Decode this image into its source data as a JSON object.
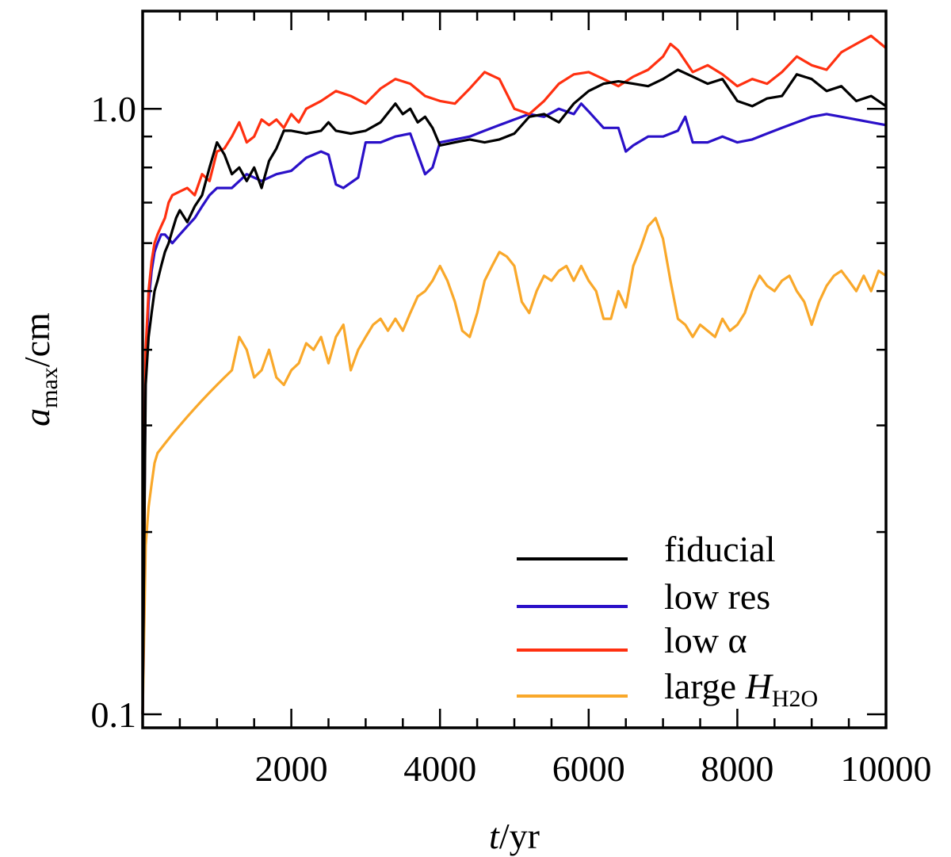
{
  "chart_data": {
    "type": "line",
    "title": "",
    "xlabel": {
      "italic": "t",
      "rest": "/yr"
    },
    "ylabel": {
      "italic": "a",
      "sub": "max",
      "rest": "/cm"
    },
    "xlim": [
      0,
      10000
    ],
    "ylim": [
      0.095,
      1.45
    ],
    "yscale": "log",
    "x_ticks": [
      2000,
      4000,
      6000,
      8000,
      10000
    ],
    "x_tick_labels": [
      "2000",
      "4000",
      "6000",
      "8000",
      "10000"
    ],
    "y_ticks": [
      0.1,
      1.0
    ],
    "y_tick_labels": [
      "0.1",
      "1.0"
    ],
    "legend_position": "bottom-right",
    "series": [
      {
        "name": "fiducial",
        "label_main": "fiducial",
        "label_italic": "",
        "label_sub": "",
        "color": "#000000",
        "x": [
          0,
          40,
          80,
          120,
          160,
          200,
          250,
          300,
          350,
          400,
          450,
          500,
          600,
          700,
          800,
          900,
          1000,
          1100,
          1200,
          1300,
          1400,
          1500,
          1600,
          1700,
          1800,
          1900,
          2000,
          2200,
          2400,
          2500,
          2600,
          2800,
          3000,
          3200,
          3400,
          3500,
          3600,
          3700,
          3800,
          3900,
          4000,
          4200,
          4400,
          4600,
          4800,
          5000,
          5200,
          5400,
          5600,
          5800,
          6000,
          6200,
          6400,
          6600,
          6800,
          7000,
          7200,
          7400,
          7600,
          7800,
          8000,
          8200,
          8400,
          8600,
          8800,
          9000,
          9200,
          9400,
          9600,
          9800,
          10000
        ],
        "y": [
          0.1,
          0.35,
          0.42,
          0.46,
          0.5,
          0.52,
          0.55,
          0.58,
          0.6,
          0.63,
          0.66,
          0.68,
          0.65,
          0.69,
          0.72,
          0.8,
          0.88,
          0.84,
          0.78,
          0.8,
          0.76,
          0.8,
          0.74,
          0.82,
          0.86,
          0.92,
          0.92,
          0.91,
          0.92,
          0.95,
          0.92,
          0.91,
          0.92,
          0.95,
          1.02,
          0.98,
          1.0,
          0.95,
          0.97,
          0.93,
          0.87,
          0.88,
          0.89,
          0.88,
          0.89,
          0.91,
          0.97,
          0.98,
          0.95,
          1.02,
          1.07,
          1.1,
          1.11,
          1.1,
          1.09,
          1.12,
          1.16,
          1.13,
          1.1,
          1.12,
          1.03,
          1.01,
          1.04,
          1.05,
          1.14,
          1.12,
          1.07,
          1.09,
          1.03,
          1.05,
          1.01
        ]
      },
      {
        "name": "low res",
        "label_main": "low res",
        "label_italic": "",
        "label_sub": "",
        "color": "#2a10c8",
        "x": [
          0,
          40,
          80,
          120,
          160,
          200,
          250,
          300,
          350,
          400,
          500,
          600,
          700,
          800,
          900,
          1000,
          1200,
          1400,
          1600,
          1800,
          2000,
          2200,
          2400,
          2500,
          2600,
          2700,
          2900,
          3000,
          3200,
          3400,
          3600,
          3800,
          3900,
          4000,
          4200,
          4400,
          4600,
          4800,
          5000,
          5200,
          5400,
          5600,
          5800,
          5900,
          6000,
          6200,
          6400,
          6500,
          6600,
          6800,
          7000,
          7200,
          7300,
          7400,
          7600,
          7800,
          8000,
          8200,
          8400,
          8600,
          8800,
          9000,
          9200,
          9400,
          9600,
          9800,
          10000
        ],
        "y": [
          0.1,
          0.38,
          0.48,
          0.54,
          0.58,
          0.6,
          0.62,
          0.62,
          0.61,
          0.6,
          0.62,
          0.64,
          0.66,
          0.69,
          0.72,
          0.74,
          0.74,
          0.78,
          0.76,
          0.78,
          0.79,
          0.83,
          0.85,
          0.84,
          0.75,
          0.74,
          0.77,
          0.88,
          0.88,
          0.9,
          0.91,
          0.78,
          0.8,
          0.88,
          0.89,
          0.9,
          0.92,
          0.94,
          0.96,
          0.98,
          0.97,
          1.0,
          0.98,
          1.02,
          0.99,
          0.93,
          0.93,
          0.85,
          0.87,
          0.9,
          0.9,
          0.92,
          0.97,
          0.88,
          0.88,
          0.9,
          0.88,
          0.89,
          0.91,
          0.93,
          0.95,
          0.97,
          0.98,
          0.97,
          0.96,
          0.95,
          0.94
        ]
      },
      {
        "name": "low α",
        "label_main": "low α",
        "label_italic": "",
        "label_sub": "",
        "color": "#ff3010",
        "x": [
          0,
          40,
          80,
          120,
          160,
          200,
          250,
          300,
          350,
          400,
          500,
          600,
          700,
          800,
          900,
          1000,
          1100,
          1200,
          1300,
          1400,
          1500,
          1600,
          1700,
          1800,
          1900,
          2000,
          2100,
          2200,
          2400,
          2600,
          2800,
          3000,
          3200,
          3400,
          3600,
          3800,
          4000,
          4200,
          4400,
          4600,
          4800,
          5000,
          5200,
          5400,
          5600,
          5800,
          6000,
          6200,
          6400,
          6600,
          6800,
          7000,
          7100,
          7200,
          7400,
          7600,
          7800,
          8000,
          8200,
          8400,
          8600,
          8800,
          9000,
          9200,
          9400,
          9600,
          9800,
          10000
        ],
        "y": [
          0.1,
          0.4,
          0.5,
          0.56,
          0.6,
          0.62,
          0.64,
          0.66,
          0.7,
          0.72,
          0.73,
          0.74,
          0.72,
          0.78,
          0.76,
          0.85,
          0.86,
          0.9,
          0.95,
          0.88,
          0.9,
          0.96,
          0.94,
          0.96,
          0.93,
          0.98,
          0.95,
          1.0,
          1.03,
          1.07,
          1.05,
          1.02,
          1.08,
          1.12,
          1.1,
          1.05,
          1.03,
          1.02,
          1.08,
          1.15,
          1.12,
          1.0,
          0.98,
          1.03,
          1.1,
          1.14,
          1.15,
          1.12,
          1.09,
          1.13,
          1.16,
          1.22,
          1.28,
          1.25,
          1.15,
          1.18,
          1.14,
          1.09,
          1.12,
          1.1,
          1.15,
          1.22,
          1.18,
          1.16,
          1.24,
          1.28,
          1.32,
          1.26
        ]
      },
      {
        "name": "large H_H2O",
        "label_main": "large ",
        "label_italic": "H",
        "label_sub": "H2O",
        "color": "#f9a82a",
        "x": [
          0,
          40,
          80,
          120,
          160,
          200,
          300,
          400,
          500,
          600,
          700,
          800,
          900,
          1000,
          1100,
          1200,
          1300,
          1400,
          1500,
          1600,
          1700,
          1800,
          1900,
          2000,
          2100,
          2200,
          2300,
          2400,
          2500,
          2600,
          2700,
          2800,
          2900,
          3000,
          3100,
          3200,
          3300,
          3400,
          3500,
          3600,
          3700,
          3800,
          3900,
          4000,
          4100,
          4200,
          4300,
          4400,
          4500,
          4600,
          4700,
          4800,
          4900,
          5000,
          5100,
          5200,
          5300,
          5400,
          5500,
          5600,
          5700,
          5800,
          5900,
          6000,
          6100,
          6200,
          6300,
          6400,
          6500,
          6600,
          6700,
          6800,
          6900,
          7000,
          7100,
          7200,
          7300,
          7400,
          7500,
          7600,
          7700,
          7800,
          7900,
          8000,
          8100,
          8200,
          8300,
          8400,
          8500,
          8600,
          8700,
          8800,
          8900,
          9000,
          9100,
          9200,
          9300,
          9400,
          9500,
          9600,
          9700,
          9800,
          9900,
          10000
        ],
        "y": [
          0.1,
          0.19,
          0.22,
          0.24,
          0.26,
          0.27,
          0.28,
          0.29,
          0.3,
          0.31,
          0.32,
          0.33,
          0.34,
          0.35,
          0.36,
          0.37,
          0.42,
          0.4,
          0.36,
          0.37,
          0.4,
          0.36,
          0.35,
          0.37,
          0.38,
          0.41,
          0.4,
          0.42,
          0.38,
          0.42,
          0.44,
          0.37,
          0.4,
          0.42,
          0.44,
          0.45,
          0.43,
          0.45,
          0.43,
          0.46,
          0.49,
          0.5,
          0.52,
          0.55,
          0.52,
          0.48,
          0.43,
          0.42,
          0.46,
          0.52,
          0.55,
          0.58,
          0.57,
          0.55,
          0.48,
          0.46,
          0.5,
          0.53,
          0.52,
          0.54,
          0.55,
          0.52,
          0.55,
          0.52,
          0.5,
          0.45,
          0.45,
          0.5,
          0.47,
          0.55,
          0.59,
          0.64,
          0.66,
          0.61,
          0.52,
          0.45,
          0.44,
          0.42,
          0.44,
          0.43,
          0.42,
          0.45,
          0.43,
          0.44,
          0.46,
          0.5,
          0.53,
          0.51,
          0.5,
          0.52,
          0.53,
          0.5,
          0.48,
          0.44,
          0.48,
          0.51,
          0.53,
          0.54,
          0.52,
          0.5,
          0.53,
          0.5,
          0.54,
          0.53
        ]
      }
    ]
  }
}
